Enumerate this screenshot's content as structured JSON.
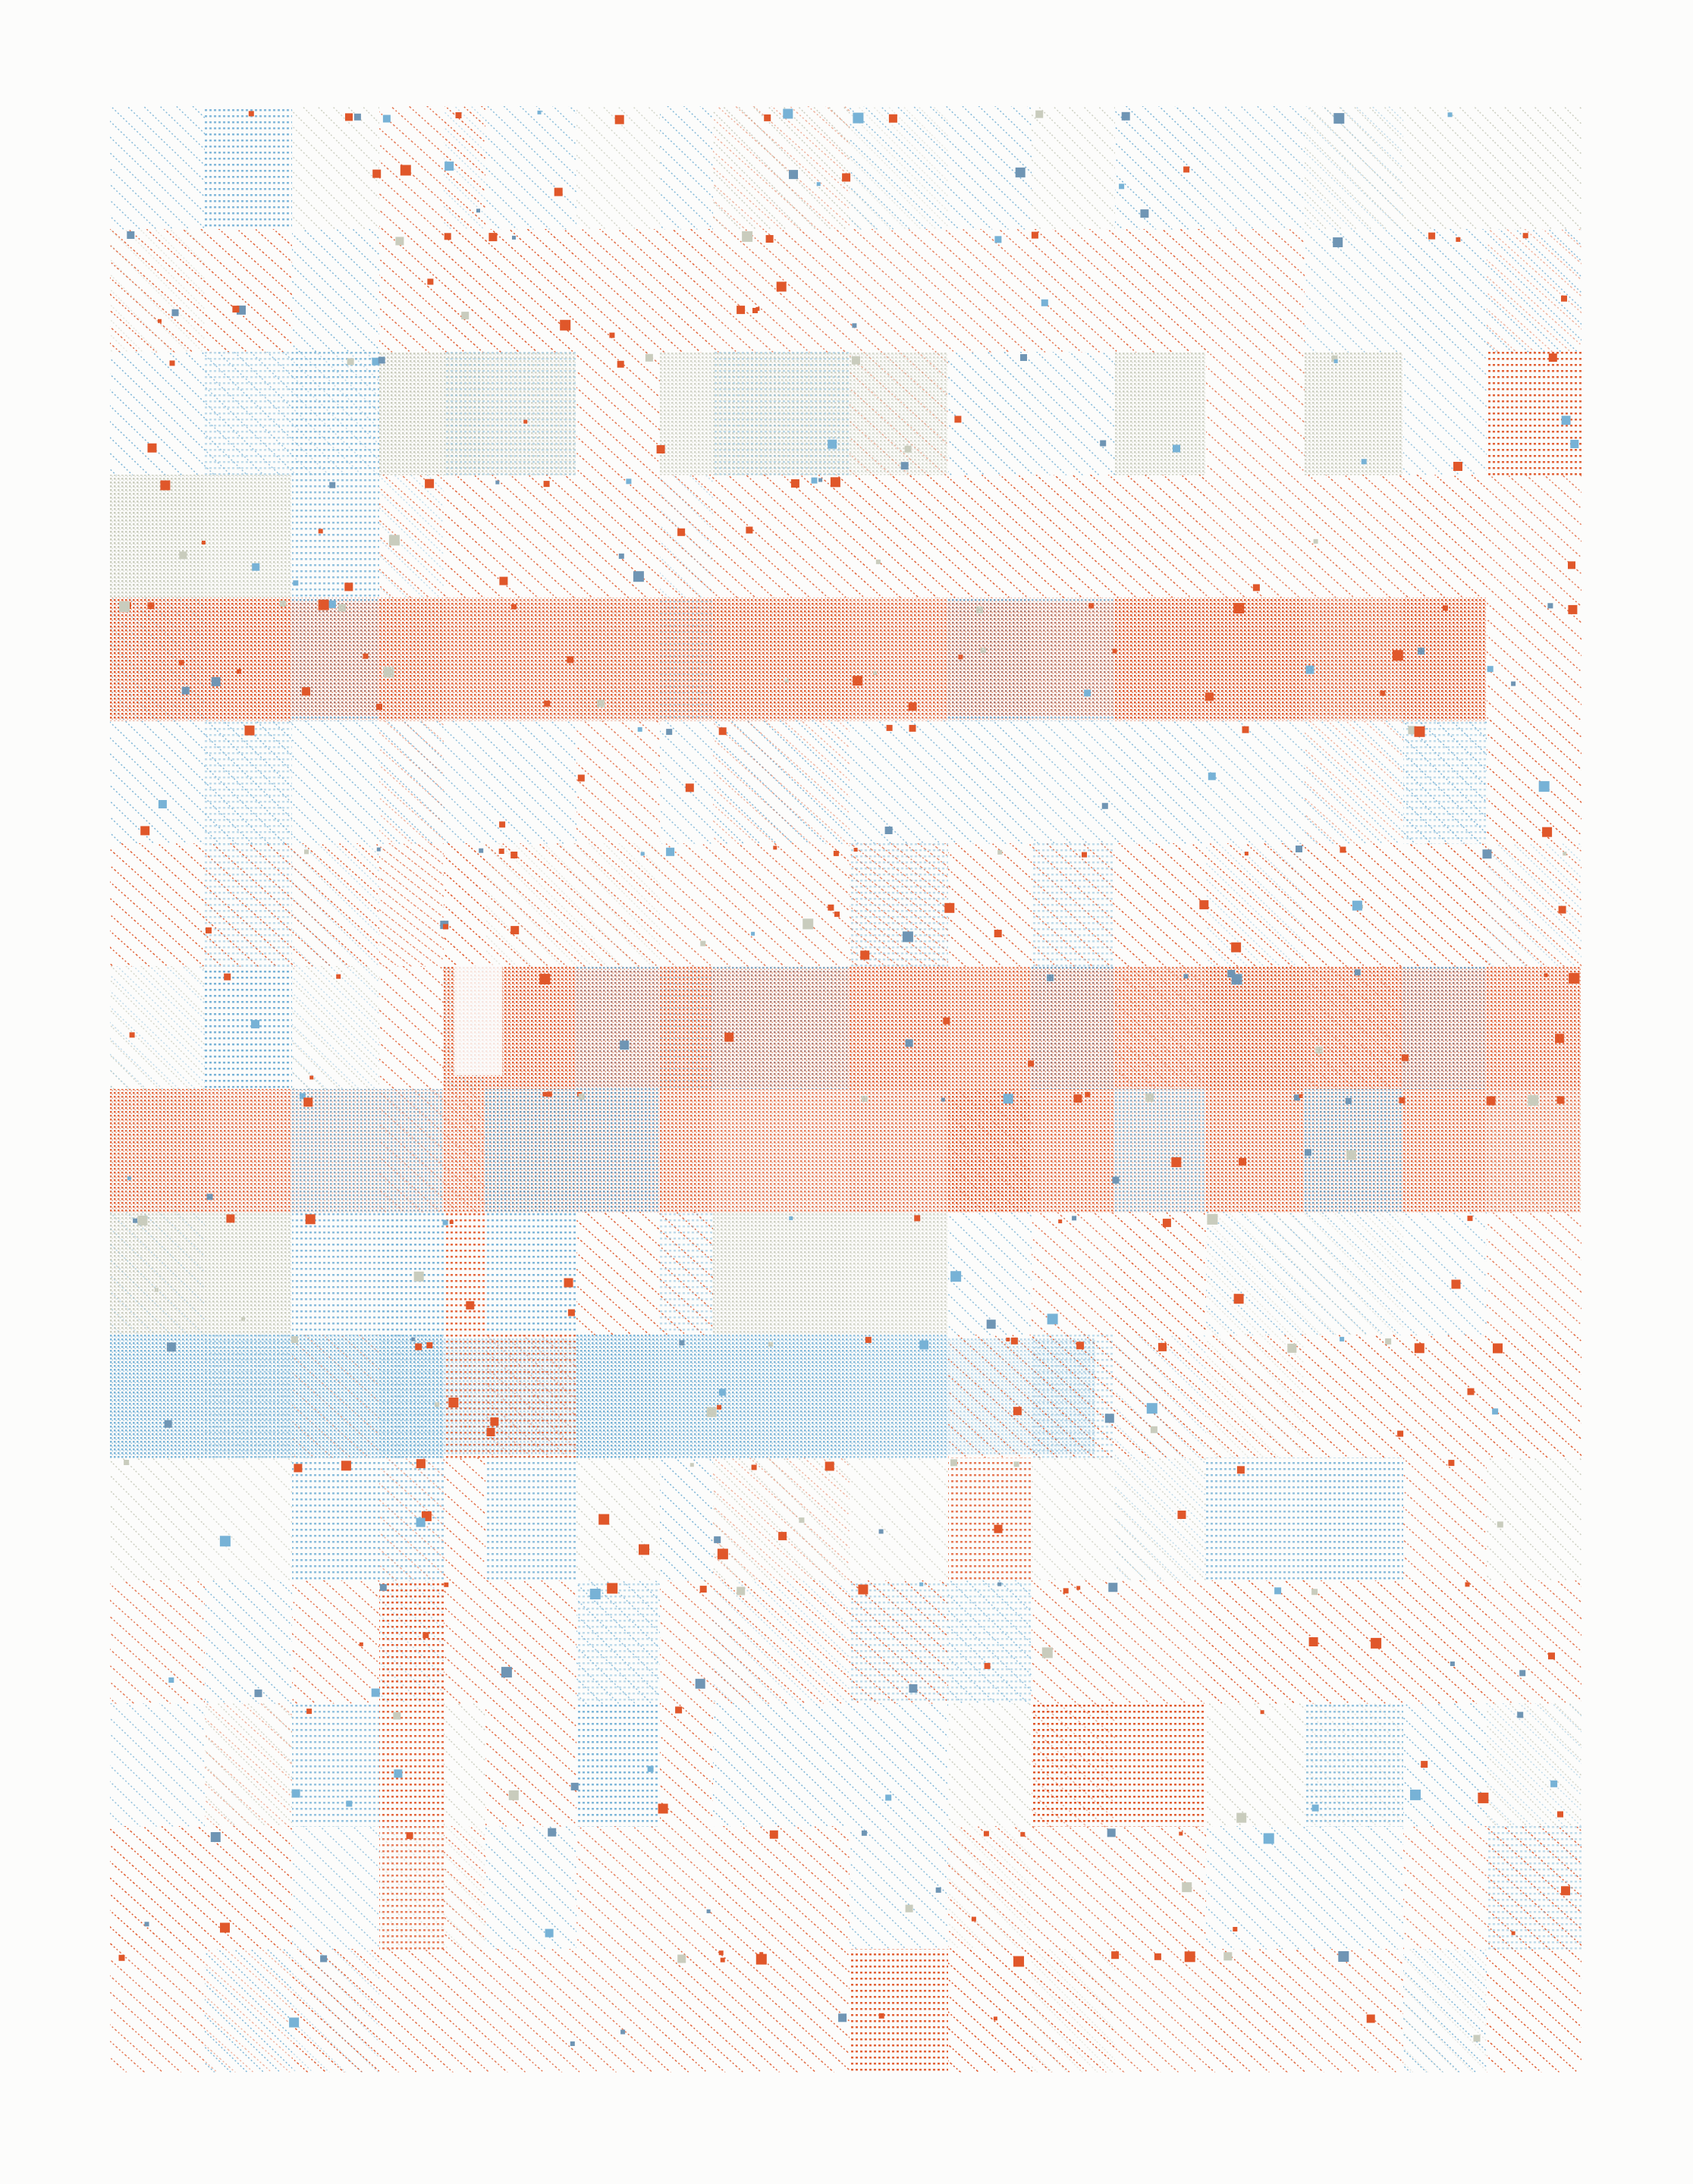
{
  "artwork": {
    "rows": 16,
    "grid_columns": 16,
    "palette": {
      "paper": "#fcfcfb",
      "orange": "#e0572a",
      "blue": "#77b2d6",
      "grey": "#c9ccbd",
      "slate": "#6f95b4"
    },
    "patterns": [
      "diagonal-hatch",
      "horizontal-lines",
      "dense-stipple",
      "square-accents"
    ]
  }
}
